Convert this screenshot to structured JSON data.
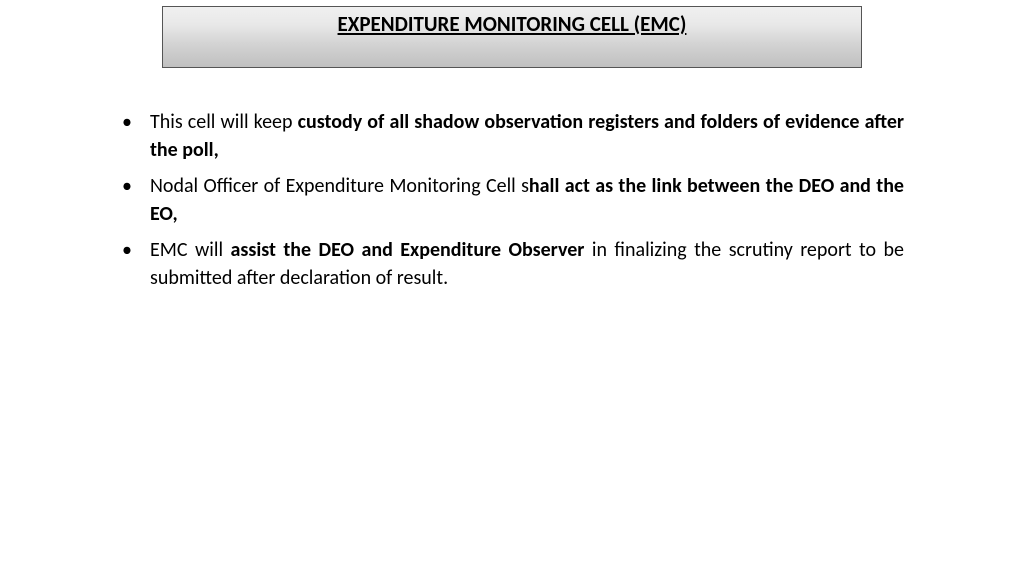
{
  "title": "EXPENDITURE MONITORING CELL (EMC)",
  "bullets": [
    {
      "part1": "This cell will keep ",
      "bold1": "custody of all shadow observation registers and folders of evidence after the poll,",
      "part2": ""
    },
    {
      "part1": "Nodal Officer of Expenditure Monitoring Cell s",
      "bold1": "hall act as the link between the DEO and the EO,",
      "part2": ""
    },
    {
      "part1": "EMC will ",
      "bold1": "assist the DEO and Expenditure Observer",
      "part2": " in finalizing the scrutiny report to be submitted after declaration of result."
    }
  ],
  "colors": {
    "text": "#000000",
    "background": "#ffffff",
    "titleGradientTop": "#f0f0f0",
    "titleGradientBottom": "#c0c0c0",
    "titleBorder": "#555555"
  },
  "typography": {
    "titleFontSize": 21,
    "bodyFontSize": 20,
    "fontFamily": "Calibri, Arial, sans-serif"
  }
}
